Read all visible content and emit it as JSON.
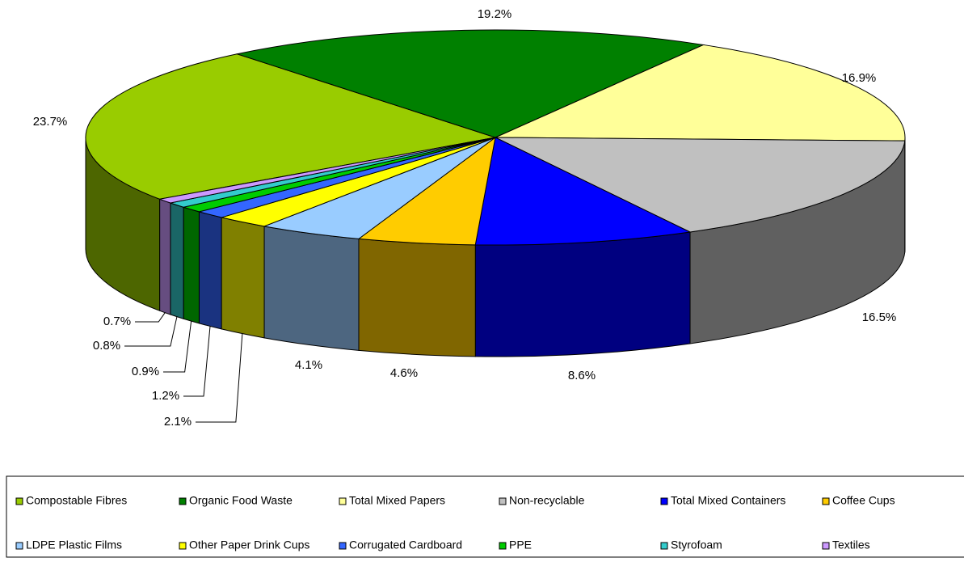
{
  "chart_data": {
    "type": "pie",
    "categories": [
      "Compostable Fibres",
      "Organic Food Waste",
      "Total Mixed Papers",
      "Non-recyclable",
      "Total Mixed Containers",
      "Coffee Cups",
      "LDPE Plastic Films",
      "Other Paper Drink Cups",
      "Corrugated Cardboard",
      "PPE",
      "Styrofoam",
      "Textiles"
    ],
    "values": [
      23.7,
      19.2,
      16.9,
      16.5,
      8.6,
      4.6,
      4.1,
      2.1,
      1.2,
      0.9,
      0.8,
      0.7
    ],
    "value_labels": [
      "23.7%",
      "19.2%",
      "16.9%",
      "16.5%",
      "8.6%",
      "4.6%",
      "4.1%",
      "2.1%",
      "1.2%",
      "0.9%",
      "0.8%",
      "0.7%"
    ],
    "colors": [
      "#99cc00",
      "#008000",
      "#ffff99",
      "#c0c0c0",
      "#0000ff",
      "#ffcc00",
      "#99ccff",
      "#ffff00",
      "#3366ff",
      "#00cc00",
      "#33cccc",
      "#cc99ff"
    ],
    "legend": "bottom"
  }
}
